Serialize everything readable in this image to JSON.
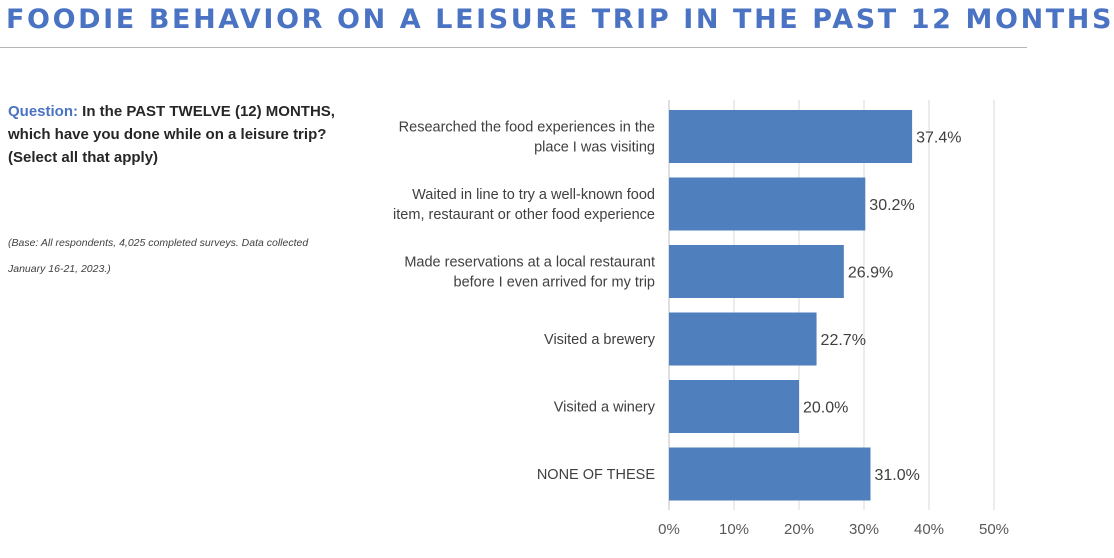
{
  "header": {
    "title": "FOODIE BEHAVIOR ON A LEISURE TRIP IN THE PAST 12 MONTHS"
  },
  "question": {
    "label": "Question:",
    "text": " In the PAST TWELVE (12) MONTHS, which have you done while on a leisure trip? (Select all that apply)"
  },
  "base_note": "(Base: All respondents, 4,025 completed surveys. Data collected January 16-21, 2023.)",
  "colors": {
    "bar": "#4f7fbd",
    "accent": "#4a73c3",
    "grid": "#d9d9d9"
  },
  "chart_data": {
    "type": "bar",
    "orientation": "horizontal",
    "categories": [
      [
        "Researched the food experiences in the",
        "place I was visiting"
      ],
      [
        "Waited in line to try a well-known food",
        "item, restaurant or other food experience"
      ],
      [
        "Made reservations at a local restaurant",
        "before I even arrived for my trip"
      ],
      [
        "Visited a brewery"
      ],
      [
        "Visited a winery"
      ],
      [
        "NONE OF THESE"
      ]
    ],
    "values": [
      37.4,
      30.2,
      26.9,
      22.7,
      20.0,
      31.0
    ],
    "value_labels": [
      "37.4%",
      "30.2%",
      "26.9%",
      "22.7%",
      "20.0%",
      "31.0%"
    ],
    "xlim": [
      0,
      50
    ],
    "xticks": [
      0,
      10,
      20,
      30,
      40,
      50
    ],
    "xtick_labels": [
      "0%",
      "10%",
      "20%",
      "30%",
      "40%",
      "50%"
    ],
    "grid": true,
    "legend": false
  }
}
